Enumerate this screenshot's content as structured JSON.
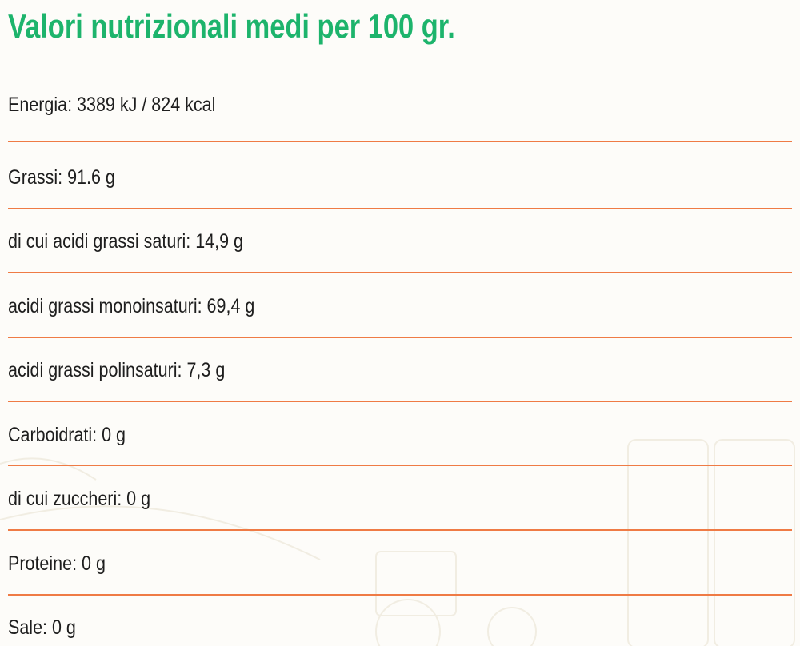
{
  "title": "Valori nutrizionali medi per 100 gr.",
  "items": [
    "Energia: 3389 kJ / 824 kcal",
    "Grassi: 91.6 g",
    "di cui acidi grassi saturi: 14,9 g",
    "acidi grassi monoinsaturi: 69,4 g",
    "acidi grassi polinsaturi: 7,3 g",
    "Carboidrati: 0 g",
    "di cui zuccheri: 0 g",
    "Proteine: 0 g",
    "Sale: 0 g"
  ],
  "colors": {
    "title": "#1db46c",
    "divider": "#ef7b45",
    "text": "#1e1e1e"
  }
}
